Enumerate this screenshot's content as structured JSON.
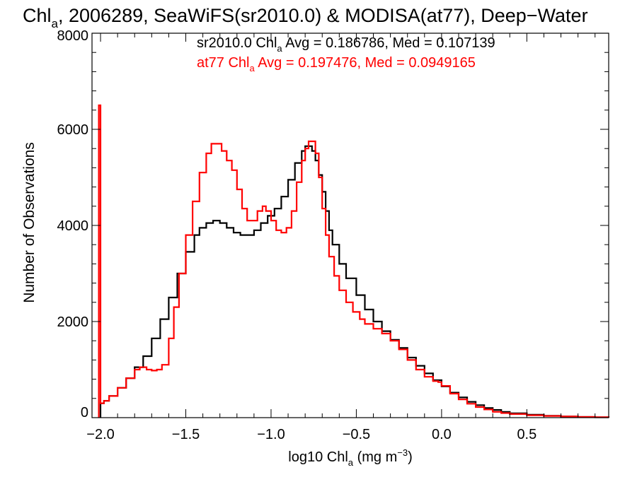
{
  "chart_data": {
    "type": "line",
    "title": {
      "pre": "Chl",
      "sub": "a",
      "post": ", 2006289, SeaWiFS(sr2010.0) & MODISA(at77), Deep−Water"
    },
    "xlabel": {
      "pre": "log10 Chl",
      "sub": "a",
      "mid": " (mg m",
      "sup": "−3",
      "post": ")"
    },
    "ylabel": "Number of Observations",
    "xlim": [
      -2.05,
      0.98
    ],
    "ylim": [
      0,
      8000
    ],
    "xticks": [
      {
        "value": -2.0,
        "label": "−2.0"
      },
      {
        "value": -1.5,
        "label": "−1.5"
      },
      {
        "value": -1.0,
        "label": "−1.0"
      },
      {
        "value": -0.5,
        "label": "−0.5"
      },
      {
        "value": 0.0,
        "label": "0.0"
      },
      {
        "value": 0.5,
        "label": "0.5"
      }
    ],
    "yticks": [
      {
        "value": 0,
        "label": "0"
      },
      {
        "value": 2000,
        "label": "2000"
      },
      {
        "value": 4000,
        "label": "4000"
      },
      {
        "value": 6000,
        "label": "6000"
      },
      {
        "value": 8000,
        "label": "8000"
      }
    ],
    "legend": [
      {
        "pre": "sr2010.0 Chl",
        "sub": "a",
        "post": " Avg = 0.186786, Med = 0.107139",
        "color": "#000000"
      },
      {
        "pre": "at77 Chl",
        "sub": "a",
        "post": " Avg = 0.197476, Med = 0.0949165",
        "color": "#ff0000"
      }
    ],
    "series": [
      {
        "color": "#000000",
        "points": [
          [
            -2.0,
            300
          ],
          [
            -1.98,
            350
          ],
          [
            -1.95,
            450
          ],
          [
            -1.9,
            620
          ],
          [
            -1.85,
            820
          ],
          [
            -1.8,
            1050
          ],
          [
            -1.75,
            1280
          ],
          [
            -1.7,
            1650
          ],
          [
            -1.65,
            2050
          ],
          [
            -1.6,
            2500
          ],
          [
            -1.55,
            3000
          ],
          [
            -1.5,
            3450
          ],
          [
            -1.45,
            3800
          ],
          [
            -1.42,
            3950
          ],
          [
            -1.38,
            4050
          ],
          [
            -1.34,
            4100
          ],
          [
            -1.3,
            4050
          ],
          [
            -1.26,
            3950
          ],
          [
            -1.22,
            3850
          ],
          [
            -1.18,
            3800
          ],
          [
            -1.14,
            3800
          ],
          [
            -1.1,
            3900
          ],
          [
            -1.06,
            4050
          ],
          [
            -1.02,
            4200
          ],
          [
            -0.98,
            4350
          ],
          [
            -0.94,
            4600
          ],
          [
            -0.9,
            4950
          ],
          [
            -0.86,
            5300
          ],
          [
            -0.82,
            5550
          ],
          [
            -0.8,
            5650
          ],
          [
            -0.78,
            5650
          ],
          [
            -0.76,
            5550
          ],
          [
            -0.74,
            5350
          ],
          [
            -0.72,
            5050
          ],
          [
            -0.7,
            4700
          ],
          [
            -0.68,
            4300
          ],
          [
            -0.66,
            3900
          ],
          [
            -0.64,
            3600
          ],
          [
            -0.6,
            3200
          ],
          [
            -0.56,
            2900
          ],
          [
            -0.5,
            2550
          ],
          [
            -0.45,
            2250
          ],
          [
            -0.4,
            2000
          ],
          [
            -0.35,
            1800
          ],
          [
            -0.3,
            1620
          ],
          [
            -0.25,
            1450
          ],
          [
            -0.2,
            1250
          ],
          [
            -0.15,
            1080
          ],
          [
            -0.1,
            920
          ],
          [
            -0.05,
            780
          ],
          [
            0.0,
            650
          ],
          [
            0.05,
            520
          ],
          [
            0.1,
            420
          ],
          [
            0.15,
            330
          ],
          [
            0.2,
            260
          ],
          [
            0.25,
            200
          ],
          [
            0.3,
            160
          ],
          [
            0.35,
            120
          ],
          [
            0.4,
            90
          ],
          [
            0.5,
            60
          ],
          [
            0.6,
            40
          ],
          [
            0.7,
            25
          ],
          [
            0.8,
            15
          ],
          [
            0.9,
            8
          ],
          [
            0.98,
            5
          ]
        ]
      },
      {
        "color": "#ff0000",
        "points": [
          [
            -2.01,
            6500
          ],
          [
            -2.0,
            300
          ],
          [
            -1.98,
            350
          ],
          [
            -1.95,
            450
          ],
          [
            -1.9,
            620
          ],
          [
            -1.85,
            820
          ],
          [
            -1.8,
            1000
          ],
          [
            -1.77,
            1050
          ],
          [
            -1.73,
            1000
          ],
          [
            -1.7,
            980
          ],
          [
            -1.67,
            1000
          ],
          [
            -1.64,
            1100
          ],
          [
            -1.6,
            1650
          ],
          [
            -1.57,
            2300
          ],
          [
            -1.54,
            3000
          ],
          [
            -1.5,
            3800
          ],
          [
            -1.46,
            4500
          ],
          [
            -1.42,
            5100
          ],
          [
            -1.38,
            5500
          ],
          [
            -1.35,
            5700
          ],
          [
            -1.32,
            5700
          ],
          [
            -1.29,
            5550
          ],
          [
            -1.26,
            5350
          ],
          [
            -1.23,
            5150
          ],
          [
            -1.2,
            4750
          ],
          [
            -1.17,
            4350
          ],
          [
            -1.14,
            4100
          ],
          [
            -1.11,
            4100
          ],
          [
            -1.08,
            4300
          ],
          [
            -1.05,
            4400
          ],
          [
            -1.03,
            4300
          ],
          [
            -1.0,
            4100
          ],
          [
            -0.97,
            3900
          ],
          [
            -0.94,
            3850
          ],
          [
            -0.91,
            3950
          ],
          [
            -0.88,
            4300
          ],
          [
            -0.85,
            4900
          ],
          [
            -0.82,
            5350
          ],
          [
            -0.8,
            5600
          ],
          [
            -0.78,
            5750
          ],
          [
            -0.76,
            5750
          ],
          [
            -0.74,
            5500
          ],
          [
            -0.72,
            5000
          ],
          [
            -0.7,
            4350
          ],
          [
            -0.68,
            3800
          ],
          [
            -0.66,
            3350
          ],
          [
            -0.63,
            2950
          ],
          [
            -0.6,
            2650
          ],
          [
            -0.56,
            2400
          ],
          [
            -0.52,
            2200
          ],
          [
            -0.48,
            2050
          ],
          [
            -0.45,
            1950
          ],
          [
            -0.4,
            1850
          ],
          [
            -0.35,
            1750
          ],
          [
            -0.3,
            1600
          ],
          [
            -0.25,
            1420
          ],
          [
            -0.2,
            1200
          ],
          [
            -0.15,
            1000
          ],
          [
            -0.1,
            850
          ],
          [
            -0.05,
            760
          ],
          [
            -0.02,
            740
          ],
          [
            0.0,
            660
          ],
          [
            0.05,
            500
          ],
          [
            0.1,
            380
          ],
          [
            0.15,
            290
          ],
          [
            0.2,
            220
          ],
          [
            0.25,
            170
          ],
          [
            0.3,
            120
          ],
          [
            0.35,
            95
          ],
          [
            0.4,
            75
          ],
          [
            0.5,
            50
          ],
          [
            0.6,
            35
          ],
          [
            0.7,
            25
          ],
          [
            0.8,
            15
          ],
          [
            0.9,
            10
          ],
          [
            0.98,
            5
          ]
        ]
      }
    ]
  }
}
